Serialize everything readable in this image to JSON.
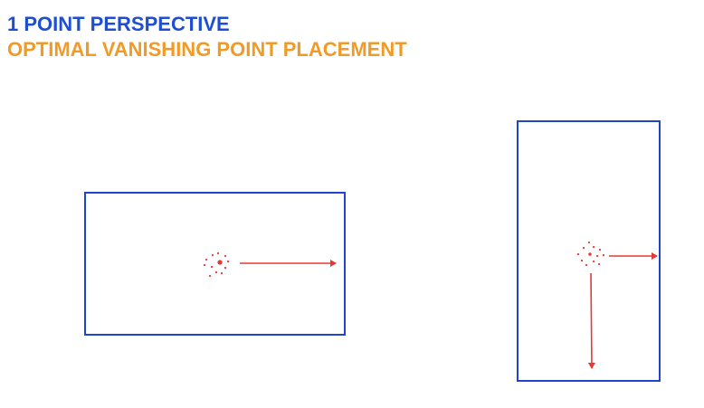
{
  "header": {
    "title": "1 POINT PERSPECTIVE",
    "subtitle": "OPTIMAL VANISHING POINT PLACEMENT"
  },
  "colors": {
    "title": "#1f4fd1",
    "subtitle": "#f29a26",
    "frame": "#1f45c8",
    "marker": "#e53935"
  },
  "diagrams": [
    {
      "name": "landscape-frame",
      "orientation": "landscape",
      "arrows": [
        "right"
      ]
    },
    {
      "name": "portrait-frame",
      "orientation": "portrait",
      "arrows": [
        "right",
        "down"
      ]
    }
  ]
}
